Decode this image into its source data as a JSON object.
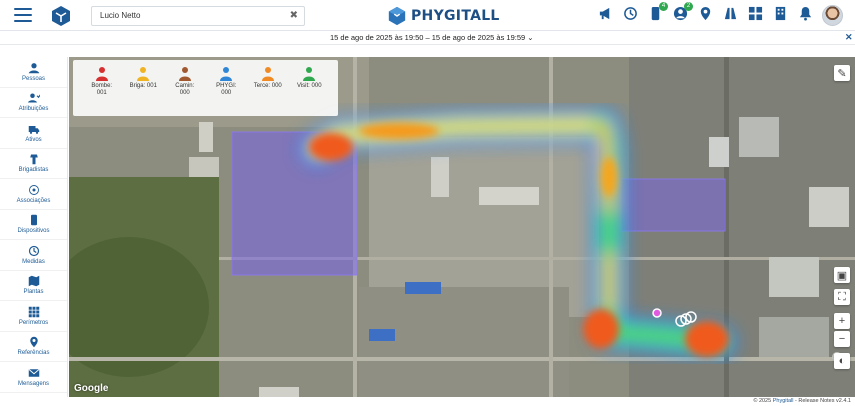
{
  "header": {
    "search_value": "Lucio Netto",
    "brand": "PHYGITALL",
    "icons": [
      {
        "name": "megaphone-icon",
        "badge": ""
      },
      {
        "name": "history-icon",
        "badge": ""
      },
      {
        "name": "device-icon",
        "badge": "4"
      },
      {
        "name": "user-status-icon",
        "badge": "2"
      },
      {
        "name": "location-pin-icon",
        "badge": ""
      },
      {
        "name": "road-icon",
        "badge": ""
      },
      {
        "name": "dashboard-icon",
        "badge": ""
      },
      {
        "name": "building-icon",
        "badge": ""
      },
      {
        "name": "bell-icon",
        "badge": ""
      }
    ]
  },
  "date_range": "15 de ago de 2025 às 19:50 – 15 de ago de 2025 às 19:59",
  "sidebar": {
    "items": [
      {
        "label": "Pessoas",
        "icon": "person-icon"
      },
      {
        "label": "Atribuições",
        "icon": "assignment-icon"
      },
      {
        "label": "Ativos",
        "icon": "truck-icon"
      },
      {
        "label": "Brigadistas",
        "icon": "firefighter-icon"
      },
      {
        "label": "Associações",
        "icon": "association-icon"
      },
      {
        "label": "Dispositivos",
        "icon": "device-icon"
      },
      {
        "label": "Medidas",
        "icon": "measure-icon"
      },
      {
        "label": "Plantas",
        "icon": "map-icon"
      },
      {
        "label": "Perímetros",
        "icon": "grid-icon"
      },
      {
        "label": "Referências",
        "icon": "pin-icon"
      },
      {
        "label": "Mensagens",
        "icon": "mail-icon"
      }
    ]
  },
  "counters": [
    {
      "line1": "Bombe:",
      "line2": "001",
      "color": "#d63031"
    },
    {
      "line1": "Briga: 001",
      "line2": "",
      "color": "#f0b323"
    },
    {
      "line1": "Camin:",
      "line2": "000",
      "color": "#a0582f"
    },
    {
      "line1": "PHYGI:",
      "line2": "000",
      "color": "#2f86d6"
    },
    {
      "line1": "Terce: 000",
      "line2": "",
      "color": "#f08a24"
    },
    {
      "line1": "Visit: 000",
      "line2": "",
      "color": "#2fa84f"
    }
  ],
  "map": {
    "attribution": "Google"
  },
  "footer": {
    "copyright": "© 2025",
    "brand_link": "Phygitall",
    "release": "- Release Notes v2.4.1"
  }
}
